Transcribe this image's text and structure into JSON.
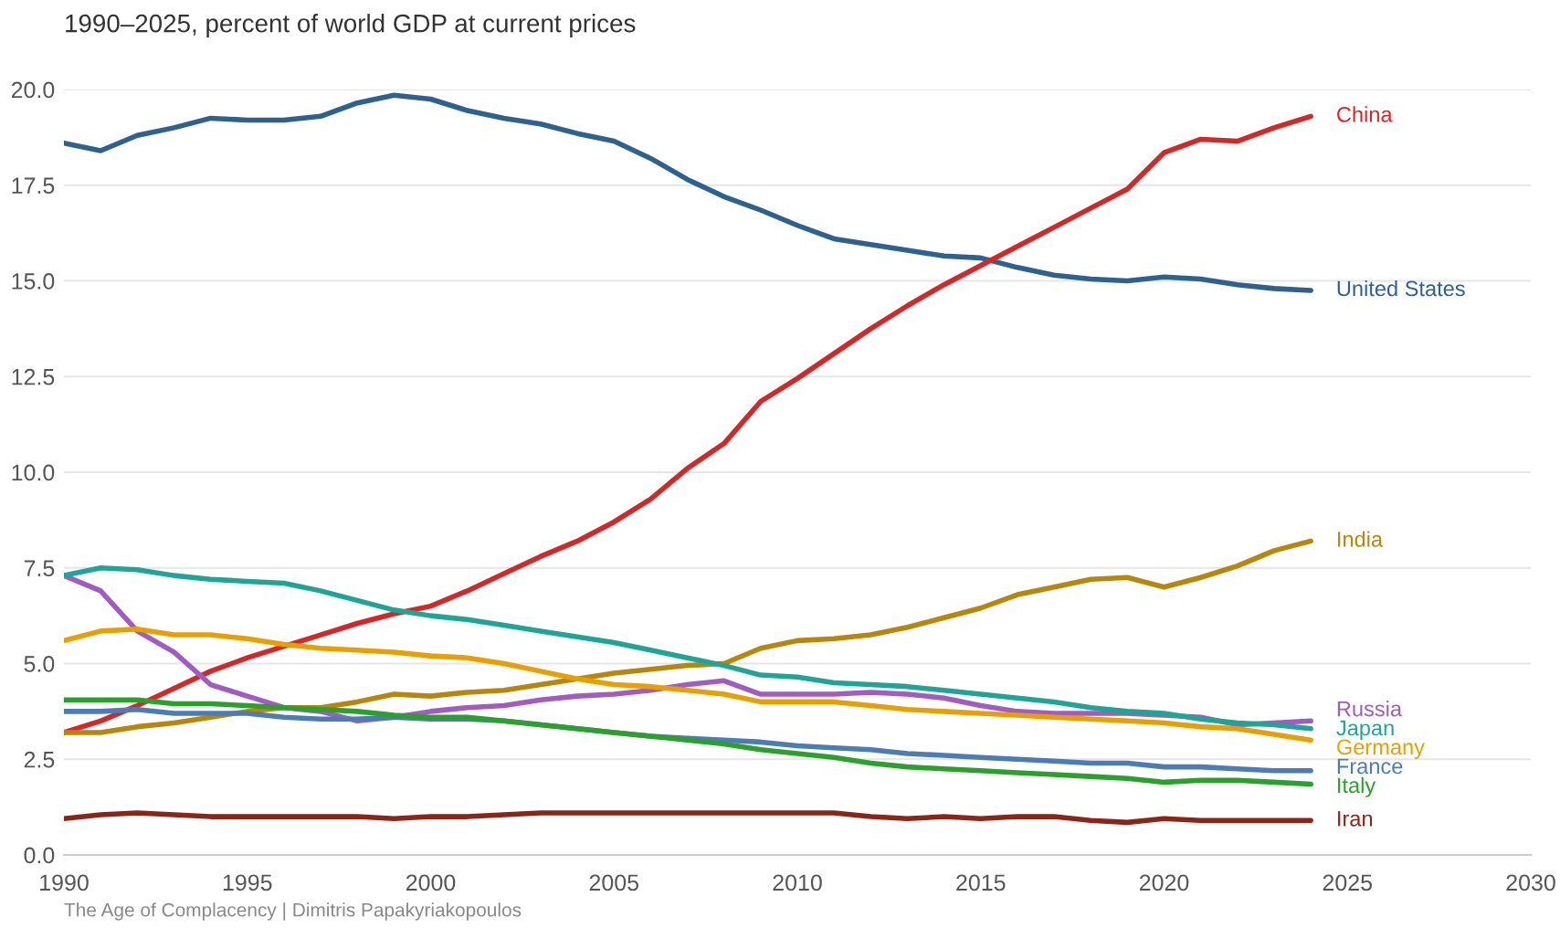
{
  "chart_data": {
    "type": "line",
    "title": "1990–2025, percent of world GDP at current prices",
    "x": [
      1990,
      1991,
      1992,
      1993,
      1994,
      1995,
      1996,
      1997,
      1998,
      1999,
      2000,
      2001,
      2002,
      2003,
      2004,
      2005,
      2006,
      2007,
      2008,
      2009,
      2010,
      2011,
      2012,
      2013,
      2014,
      2015,
      2016,
      2017,
      2018,
      2019,
      2020,
      2021,
      2022,
      2023,
      2024
    ],
    "series": [
      {
        "name": "United States",
        "color": "#2e6090",
        "values": [
          18.6,
          18.4,
          18.8,
          19.0,
          19.25,
          19.2,
          19.2,
          19.3,
          19.65,
          19.85,
          19.75,
          19.45,
          19.25,
          19.1,
          18.85,
          18.65,
          18.2,
          17.65,
          17.2,
          16.85,
          16.45,
          16.1,
          15.95,
          15.8,
          15.65,
          15.6,
          15.35,
          15.15,
          15.05,
          15.0,
          15.1,
          15.05,
          14.9,
          14.8,
          14.75
        ]
      },
      {
        "name": "China",
        "color": "#d62728",
        "values": [
          3.2,
          3.5,
          3.9,
          4.35,
          4.8,
          5.15,
          5.45,
          5.75,
          6.05,
          6.3,
          6.5,
          6.9,
          7.35,
          7.8,
          8.2,
          8.7,
          9.3,
          10.1,
          10.75,
          11.85,
          12.45,
          13.1,
          13.75,
          14.35,
          14.9,
          15.4,
          15.9,
          16.4,
          16.9,
          17.4,
          18.35,
          18.7,
          18.65,
          19.0,
          19.3
        ]
      },
      {
        "name": "India",
        "color": "#b8860b",
        "values": [
          3.2,
          3.2,
          3.35,
          3.45,
          3.6,
          3.75,
          3.85,
          3.85,
          4.0,
          4.2,
          4.15,
          4.25,
          4.3,
          4.45,
          4.6,
          4.75,
          4.85,
          4.95,
          5.0,
          5.4,
          5.6,
          5.65,
          5.75,
          5.95,
          6.2,
          6.45,
          6.8,
          7.0,
          7.2,
          7.25,
          7.0,
          7.25,
          7.55,
          7.95,
          8.2
        ]
      },
      {
        "name": "Russia",
        "color": "#a05cc0",
        "values": [
          7.3,
          6.9,
          5.85,
          5.3,
          4.45,
          4.15,
          3.85,
          3.75,
          3.5,
          3.6,
          3.75,
          3.85,
          3.9,
          4.05,
          4.15,
          4.2,
          4.3,
          4.45,
          4.55,
          4.2,
          4.2,
          4.2,
          4.25,
          4.2,
          4.1,
          3.9,
          3.75,
          3.7,
          3.7,
          3.7,
          3.65,
          3.6,
          3.4,
          3.45,
          3.5
        ]
      },
      {
        "name": "Japan",
        "color": "#1fa598",
        "values": [
          7.3,
          7.5,
          7.45,
          7.3,
          7.2,
          7.15,
          7.1,
          6.9,
          6.65,
          6.4,
          6.25,
          6.15,
          6.0,
          5.85,
          5.7,
          5.55,
          5.35,
          5.15,
          4.95,
          4.7,
          4.65,
          4.5,
          4.45,
          4.4,
          4.3,
          4.2,
          4.1,
          4.0,
          3.85,
          3.75,
          3.7,
          3.55,
          3.45,
          3.4,
          3.3
        ]
      },
      {
        "name": "Germany",
        "color": "#e8a000",
        "values": [
          5.6,
          5.85,
          5.9,
          5.75,
          5.75,
          5.65,
          5.5,
          5.4,
          5.35,
          5.3,
          5.2,
          5.15,
          5.0,
          4.8,
          4.6,
          4.45,
          4.4,
          4.3,
          4.2,
          4.0,
          4.0,
          4.0,
          3.9,
          3.8,
          3.75,
          3.7,
          3.65,
          3.6,
          3.55,
          3.5,
          3.45,
          3.35,
          3.3,
          3.15,
          3.0
        ]
      },
      {
        "name": "France",
        "color": "#4c7cb5",
        "values": [
          3.75,
          3.75,
          3.8,
          3.7,
          3.7,
          3.7,
          3.6,
          3.55,
          3.55,
          3.6,
          3.55,
          3.55,
          3.5,
          3.4,
          3.3,
          3.2,
          3.1,
          3.05,
          3.0,
          2.95,
          2.85,
          2.8,
          2.75,
          2.65,
          2.6,
          2.55,
          2.5,
          2.45,
          2.4,
          2.4,
          2.3,
          2.3,
          2.25,
          2.2,
          2.2
        ]
      },
      {
        "name": "Italy",
        "color": "#2ca02c",
        "values": [
          4.05,
          4.05,
          4.05,
          3.95,
          3.95,
          3.9,
          3.85,
          3.8,
          3.75,
          3.65,
          3.6,
          3.6,
          3.5,
          3.4,
          3.3,
          3.2,
          3.1,
          3.0,
          2.9,
          2.75,
          2.65,
          2.55,
          2.4,
          2.3,
          2.25,
          2.2,
          2.15,
          2.1,
          2.05,
          2.0,
          1.9,
          1.95,
          1.95,
          1.9,
          1.85
        ]
      },
      {
        "name": "Iran",
        "color": "#8b2518",
        "values": [
          0.95,
          1.05,
          1.1,
          1.05,
          1.0,
          1.0,
          1.0,
          1.0,
          1.0,
          0.95,
          1.0,
          1.0,
          1.05,
          1.1,
          1.1,
          1.1,
          1.1,
          1.1,
          1.1,
          1.1,
          1.1,
          1.1,
          1.0,
          0.95,
          1.0,
          0.95,
          1.0,
          1.0,
          0.9,
          0.85,
          0.95,
          0.9,
          0.9,
          0.9,
          0.9
        ]
      }
    ],
    "xlim": [
      1990,
      2030
    ],
    "xticks": [
      1990,
      1995,
      2000,
      2005,
      2010,
      2015,
      2020,
      2025,
      2030
    ],
    "ylim": [
      0,
      20
    ],
    "yticks": [
      {
        "value": 0,
        "label": "0.0"
      },
      {
        "value": 2.5,
        "label": "2.5"
      },
      {
        "value": 5,
        "label": "5.0"
      },
      {
        "value": 7.5,
        "label": "7.5"
      },
      {
        "value": 10,
        "label": "10.0"
      },
      {
        "value": 12.5,
        "label": "12.5"
      },
      {
        "value": 15,
        "label": "15.0"
      },
      {
        "value": 17.5,
        "label": "17.5"
      },
      {
        "value": 20,
        "label": "20.0"
      }
    ],
    "grid": "y",
    "marker": "none",
    "line_style": "solid",
    "annotations": [
      "The Age of Complacency | Dimitris Papakyriakopoulos"
    ]
  }
}
